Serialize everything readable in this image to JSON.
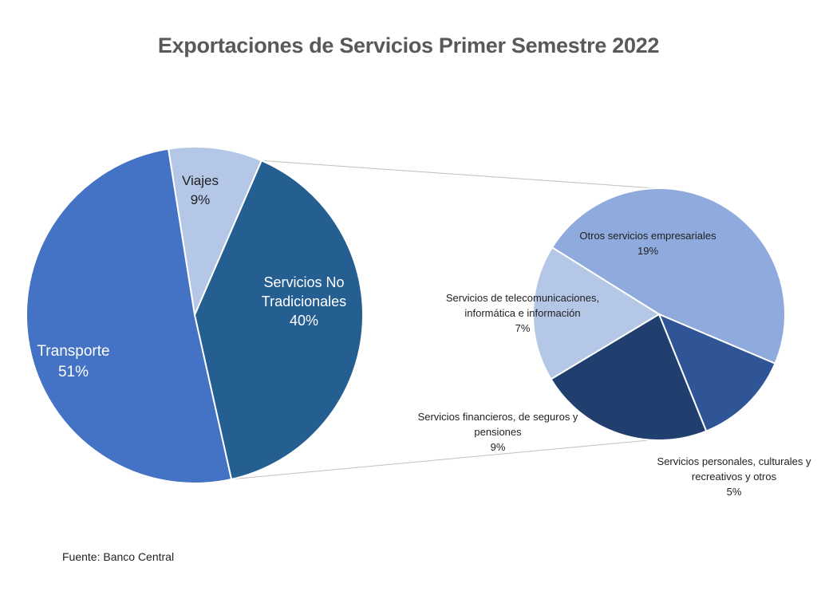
{
  "chart_data": {
    "type": "pie",
    "title": "Exportaciones de Servicios Primer Semestre 2022",
    "main_pie": {
      "slices": [
        {
          "label": "Viajes",
          "value_label": "9%",
          "value": 9,
          "color": "#b4c7e7"
        },
        {
          "label": "Servicios No Tradicionales",
          "value_label": "40%",
          "value": 40,
          "color": "#255e91"
        },
        {
          "label": "Transporte",
          "value_label": "51%",
          "value": 51,
          "color": "#4472c4"
        }
      ]
    },
    "breakdown_pie": {
      "parent": "Servicios No Tradicionales",
      "slices": [
        {
          "label": "Otros servicios empresariales",
          "value_label": "19%",
          "value": 19,
          "color": "#8faadc"
        },
        {
          "label": "Servicios personales, culturales y recreativos y otros",
          "value_label": "5%",
          "value": 5,
          "color": "#2f5597"
        },
        {
          "label": "Servicios financieros, de seguros y pensiones",
          "value_label": "9%",
          "value": 9,
          "color": "#203f6f"
        },
        {
          "label": "Servicios de telecomunicaciones, informática e información",
          "value_label": "7%",
          "value": 7,
          "color": "#b4c7e7"
        }
      ]
    }
  },
  "source": "Fuente: Banco Central",
  "labels": {
    "viajes": [
      "Viajes",
      "9%"
    ],
    "no_trad": [
      "Servicios No",
      "Tradicionales",
      "40%"
    ],
    "transporte": [
      "Transporte",
      "51%"
    ],
    "otros": [
      "Otros servicios empresariales",
      "19%"
    ],
    "telecom": [
      "Servicios de telecomunicaciones,",
      "informática e información",
      "7%"
    ],
    "financ": [
      "Servicios financieros, de seguros y",
      "pensiones",
      "9%"
    ],
    "personales": [
      "Servicios personales, culturales y",
      "recreativos y otros",
      "5%"
    ]
  }
}
